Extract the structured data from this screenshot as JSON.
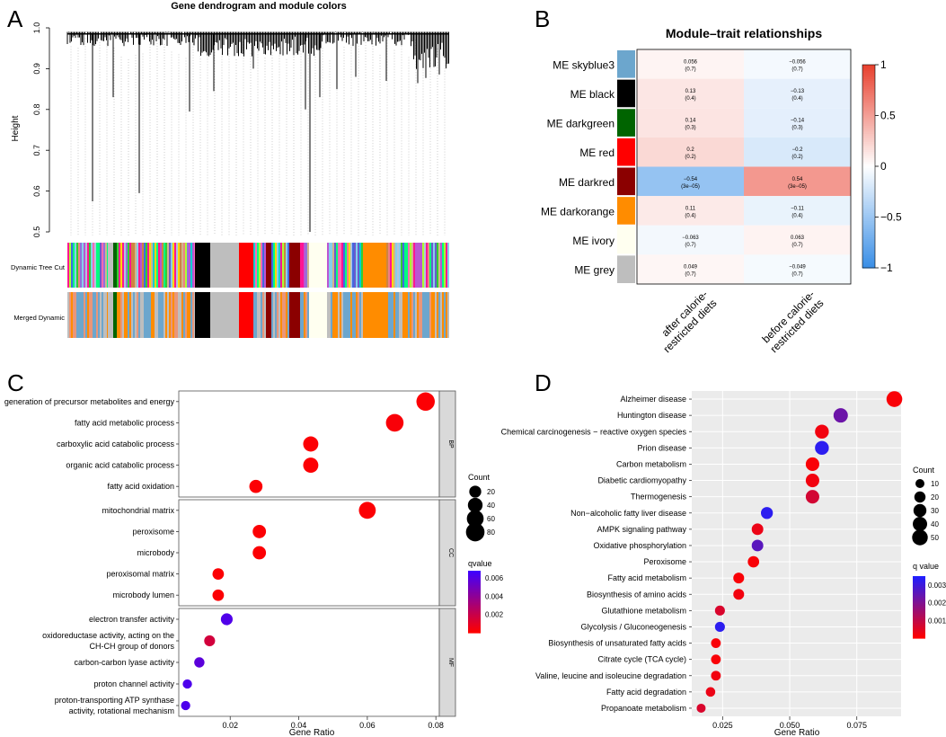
{
  "figure": {
    "panels": [
      {
        "letter": "A"
      },
      {
        "letter": "B"
      },
      {
        "letter": "C"
      },
      {
        "letter": "D"
      }
    ]
  },
  "chart_data": [
    {
      "id": "A",
      "type": "dendrogram",
      "title": "Gene dendrogram and module colors",
      "ylabel": "Height",
      "yticks": [
        "1.0",
        "0.9",
        "0.8",
        "0.7",
        "0.6",
        "0.5"
      ],
      "ylim": [
        0.5,
        1.0
      ],
      "track_labels": [
        "Dynamic Tree Cut",
        "Merged Dynamic"
      ],
      "colors": {
        "skyblue3": "#6CA6CD",
        "black": "#000000",
        "darkgreen": "#006400",
        "red": "#FF0000",
        "darkred": "#8B0000",
        "darkorange": "#FF8C00",
        "ivory": "#FFFFF0",
        "grey": "#BEBEBE",
        "palette": [
          "#6A5ACD",
          "#87CEEB",
          "#FF69B4",
          "#32CD32",
          "#FFD700",
          "#00CED1",
          "#9370DB",
          "#CD853F",
          "#ADFF2F",
          "#FF1493",
          "#4169E1",
          "#B0C4DE",
          "#D2B48C",
          "#00FF7F",
          "#BA55D3",
          "#F08080"
        ]
      }
    },
    {
      "id": "B",
      "type": "heatmap",
      "title": "Module–trait relationships",
      "rows": [
        "ME skyblue3",
        "ME black",
        "ME darkgreen",
        "ME red",
        "ME darkred",
        "ME darkorange",
        "ME ivory",
        "ME grey"
      ],
      "row_colors": [
        "#6CA6CD",
        "#000000",
        "#006400",
        "#FF0000",
        "#8B0000",
        "#FF8C00",
        "#FFFFF0",
        "#BEBEBE"
      ],
      "columns": [
        {
          "line1": "after calorie-",
          "line2": "restricted diets"
        },
        {
          "line1": "before calorie-",
          "line2": "restricted diets"
        }
      ],
      "values": [
        [
          0.056,
          -0.056
        ],
        [
          0.13,
          -0.13
        ],
        [
          0.14,
          -0.14
        ],
        [
          0.2,
          -0.2
        ],
        [
          -0.54,
          0.54
        ],
        [
          0.11,
          -0.11
        ],
        [
          -0.063,
          0.063
        ],
        [
          0.049,
          -0.049
        ]
      ],
      "labels": [
        [
          "0.056",
          "−0.056"
        ],
        [
          "0.13",
          "−0.13"
        ],
        [
          "0.14",
          "−0.14"
        ],
        [
          "0.2",
          "−0.2"
        ],
        [
          "−0.54",
          "0.54"
        ],
        [
          "0.11",
          "−0.11"
        ],
        [
          "−0.063",
          "0.063"
        ],
        [
          "0.049",
          "−0.049"
        ]
      ],
      "pvalues": [
        [
          "(0.7)",
          "(0.7)"
        ],
        [
          "(0.4)",
          "(0.4)"
        ],
        [
          "(0.3)",
          "(0.3)"
        ],
        [
          "(0.2)",
          "(0.2)"
        ],
        [
          "(3e−05)",
          "(3e−05)"
        ],
        [
          "(0.4)",
          "(0.4)"
        ],
        [
          "(0.7)",
          "(0.7)"
        ],
        [
          "(0.7)",
          "(0.7)"
        ]
      ],
      "colorbar_ticks": [
        "1",
        "0.5",
        "0",
        "−0.5",
        "−1"
      ],
      "colorbar_values": [
        1,
        0.5,
        0,
        -0.5,
        -1
      ],
      "scale": {
        "low": "#3B8FE6",
        "mid": "#FFFFFF",
        "high": "#E8412F"
      }
    },
    {
      "id": "C",
      "type": "scatter",
      "xlabel": "Gene Ratio",
      "xlim": [
        0.005,
        0.081
      ],
      "xticks": [
        {
          "v": 0.02,
          "t": "0.02"
        },
        {
          "v": 0.04,
          "t": "0.04"
        },
        {
          "v": 0.06,
          "t": "0.06"
        },
        {
          "v": 0.08,
          "t": "0.08"
        }
      ],
      "facets": [
        {
          "name": "BP",
          "terms": [
            {
              "label": [
                "generation of precursor metabolites and energy"
              ],
              "x": 0.077,
              "count": 78,
              "q": 0.0001
            },
            {
              "label": [
                "fatty acid metabolic process"
              ],
              "x": 0.068,
              "count": 69,
              "q": 0.0002
            },
            {
              "label": [
                "carboxylic acid catabolic process"
              ],
              "x": 0.0435,
              "count": 44,
              "q": 0.0001
            },
            {
              "label": [
                "organic acid catabolic process"
              ],
              "x": 0.0435,
              "count": 44,
              "q": 0.0001
            },
            {
              "label": [
                "fatty acid oxidation"
              ],
              "x": 0.0275,
              "count": 28,
              "q": 0.0001
            }
          ]
        },
        {
          "name": "CC",
          "terms": [
            {
              "label": [
                "mitochondrial matrix"
              ],
              "x": 0.06,
              "count": 61,
              "q": 0.0001
            },
            {
              "label": [
                "peroxisome"
              ],
              "x": 0.0285,
              "count": 29,
              "q": 0.0001
            },
            {
              "label": [
                "microbody"
              ],
              "x": 0.0285,
              "count": 29,
              "q": 0.0001
            },
            {
              "label": [
                "peroxisomal matrix"
              ],
              "x": 0.0165,
              "count": 17,
              "q": 0.0001
            },
            {
              "label": [
                "microbody lumen"
              ],
              "x": 0.0165,
              "count": 17,
              "q": 0.0001
            }
          ]
        },
        {
          "name": "MF",
          "terms": [
            {
              "label": [
                "electron transfer activity"
              ],
              "x": 0.019,
              "count": 19,
              "q": 0.0062
            },
            {
              "label": [
                "oxidoreductase activity, acting on the",
                "CH-CH group of donors"
              ],
              "x": 0.014,
              "count": 14,
              "q": 0.0016
            },
            {
              "label": [
                "carbon-carbon lyase activity"
              ],
              "x": 0.011,
              "count": 11,
              "q": 0.0058
            },
            {
              "label": [
                "proton channel activity"
              ],
              "x": 0.0075,
              "count": 7,
              "q": 0.0063
            },
            {
              "label": [
                "proton-transporting ATP synthase",
                "activity, rotational mechanism"
              ],
              "x": 0.007,
              "count": 7,
              "q": 0.0063
            }
          ]
        }
      ],
      "legend_count": {
        "title": "Count",
        "values": [
          20,
          40,
          60,
          80
        ],
        "labels": [
          "20",
          "40",
          "60",
          "80"
        ]
      },
      "legend_color": {
        "title": "qvalue",
        "ticks": [
          "0.006",
          "0.004",
          "0.002"
        ],
        "tick_values": [
          0.006,
          0.004,
          0.002
        ],
        "range": [
          0.0,
          0.0068
        ]
      },
      "scale": {
        "low": "#FF0000",
        "high": "#3F00FF"
      }
    },
    {
      "id": "D",
      "type": "scatter",
      "xlabel": "Gene Ratio",
      "xlim": [
        0.0135,
        0.0915
      ],
      "xticks": [
        {
          "v": 0.025,
          "t": "0.025"
        },
        {
          "v": 0.05,
          "t": "0.050"
        },
        {
          "v": 0.075,
          "t": "0.075"
        }
      ],
      "terms": [
        {
          "label": "Alzheimer disease",
          "x": 0.089,
          "count": 51,
          "q": 0.0001
        },
        {
          "label": "Huntington disease",
          "x": 0.069,
          "count": 40,
          "q": 0.0023
        },
        {
          "label": "Chemical carcinogenesis − reactive oxygen species",
          "x": 0.062,
          "count": 36,
          "q": 0.0002
        },
        {
          "label": "Prion disease",
          "x": 0.062,
          "count": 36,
          "q": 0.0033
        },
        {
          "label": "Carbon metabolism",
          "x": 0.0585,
          "count": 34,
          "q": 0.0001
        },
        {
          "label": "Diabetic cardiomyopathy",
          "x": 0.0585,
          "count": 34,
          "q": 0.0002
        },
        {
          "label": "Thermogenesis",
          "x": 0.0585,
          "count": 34,
          "q": 0.0007
        },
        {
          "label": "Non−alcoholic fatty liver disease",
          "x": 0.0415,
          "count": 24,
          "q": 0.0033
        },
        {
          "label": "AMPK signaling pathway",
          "x": 0.038,
          "count": 22,
          "q": 0.0003
        },
        {
          "label": "Oxidative phosphorylation",
          "x": 0.038,
          "count": 22,
          "q": 0.0026
        },
        {
          "label": "Peroxisome",
          "x": 0.0365,
          "count": 21,
          "q": 0.0001
        },
        {
          "label": "Fatty acid metabolism",
          "x": 0.031,
          "count": 18,
          "q": 0.0001
        },
        {
          "label": "Biosynthesis of amino acids",
          "x": 0.031,
          "count": 18,
          "q": 0.0002
        },
        {
          "label": "Glutathione metabolism",
          "x": 0.024,
          "count": 14,
          "q": 0.0006
        },
        {
          "label": "Glycolysis / Gluconeogenesis",
          "x": 0.024,
          "count": 14,
          "q": 0.0033
        },
        {
          "label": "Biosynthesis of unsaturated fatty acids",
          "x": 0.0225,
          "count": 13,
          "q": 0.0001
        },
        {
          "label": "Citrate cycle (TCA cycle)",
          "x": 0.0225,
          "count": 13,
          "q": 0.0001
        },
        {
          "label": "Valine, leucine and isoleucine degradation",
          "x": 0.0225,
          "count": 13,
          "q": 0.0002
        },
        {
          "label": "Fatty acid degradation",
          "x": 0.0205,
          "count": 12,
          "q": 0.0003
        },
        {
          "label": "Propanoate metabolism",
          "x": 0.017,
          "count": 10,
          "q": 0.0006
        }
      ],
      "legend_count": {
        "title": "Count",
        "values": [
          10,
          20,
          30,
          40,
          50
        ],
        "labels": [
          "10",
          "20",
          "30",
          "40",
          "50"
        ]
      },
      "legend_color": {
        "title": "q value",
        "ticks": [
          "0.003",
          "0.002",
          "0.001"
        ],
        "tick_values": [
          0.003,
          0.002,
          0.001
        ],
        "range": [
          0.0,
          0.0035
        ]
      },
      "scale": {
        "low": "#FF0000",
        "high": "#1F1FFF"
      }
    }
  ]
}
